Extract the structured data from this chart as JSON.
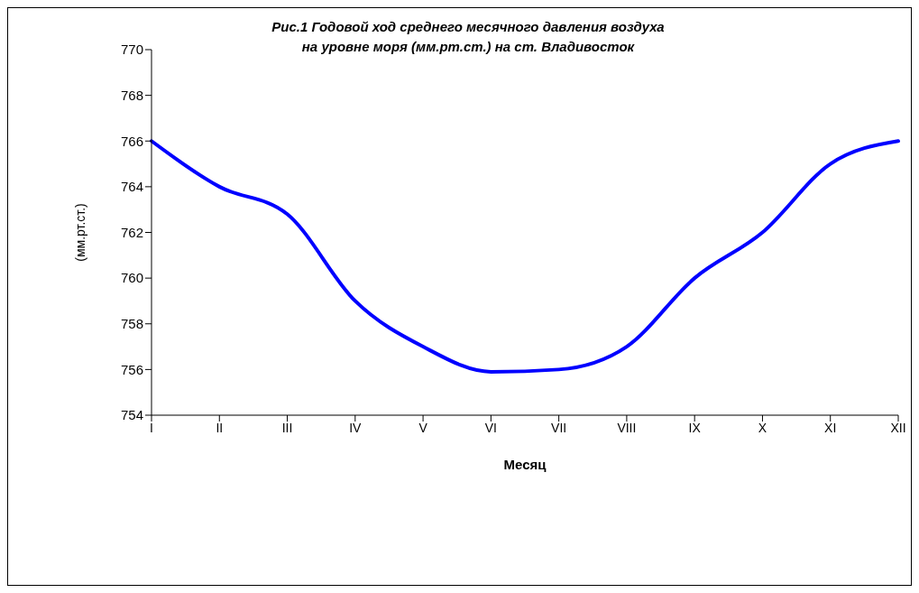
{
  "chart_data": {
    "type": "line",
    "title": "Рис.1  Годовой ход среднего месячного давления воздуха\nна уровне моря (мм.рт.ст.) на ст. Владивосток",
    "xlabel": "Месяц",
    "ylabel": "(мм.рт.ст.)",
    "categories": [
      "I",
      "II",
      "III",
      "IV",
      "V",
      "VI",
      "VII",
      "VIII",
      "IX",
      "X",
      "XI",
      "XII"
    ],
    "series": [
      {
        "color": "#0000ff",
        "values": [
          766,
          764,
          762.8,
          759,
          757,
          755.9,
          756,
          757,
          760,
          762,
          765,
          766
        ]
      }
    ],
    "ylim": [
      754,
      770
    ],
    "yticks": [
      754,
      756,
      758,
      760,
      762,
      764,
      766,
      768,
      770
    ],
    "grid": false,
    "legend": false,
    "marker": "none",
    "line_style": "solid"
  }
}
